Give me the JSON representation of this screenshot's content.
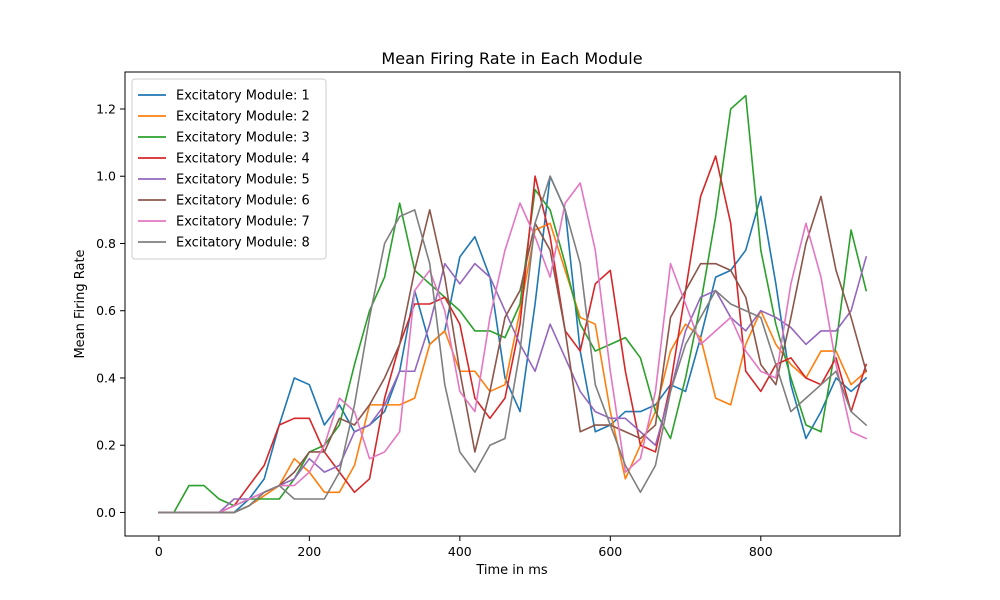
{
  "chart_data": {
    "type": "line",
    "title": "Mean Firing Rate in Each Module",
    "xlabel": "Time in ms",
    "ylabel": "Mean Firing Rate",
    "xlim": [
      -45,
      985
    ],
    "ylim": [
      -0.07,
      1.31
    ],
    "xticks": [
      0,
      200,
      400,
      600,
      800
    ],
    "xtick_labels": [
      "0",
      "200",
      "400",
      "600",
      "800"
    ],
    "yticks": [
      0.0,
      0.2,
      0.4,
      0.6,
      0.8,
      1.0,
      1.2
    ],
    "ytick_labels": [
      "0.0",
      "0.2",
      "0.4",
      "0.6",
      "0.8",
      "1.0",
      "1.2"
    ],
    "grid": false,
    "legend_position": "top-left",
    "x": [
      0,
      20,
      40,
      60,
      80,
      100,
      120,
      140,
      160,
      180,
      200,
      220,
      240,
      260,
      280,
      300,
      320,
      340,
      360,
      380,
      400,
      420,
      440,
      460,
      480,
      500,
      520,
      540,
      560,
      580,
      600,
      620,
      640,
      660,
      680,
      700,
      720,
      740,
      760,
      780,
      800,
      820,
      840,
      860,
      880,
      900,
      920,
      940
    ],
    "series": [
      {
        "name": "Excitatory Module: 1",
        "color": "#1f77b4",
        "values": [
          0,
          0,
          0,
          0,
          0,
          0,
          0.04,
          0.1,
          0.26,
          0.4,
          0.38,
          0.26,
          0.32,
          0.24,
          0.26,
          0.3,
          0.42,
          0.66,
          0.5,
          0.54,
          0.76,
          0.82,
          0.7,
          0.4,
          0.3,
          0.62,
          1.0,
          0.9,
          0.48,
          0.24,
          0.26,
          0.3,
          0.3,
          0.32,
          0.38,
          0.36,
          0.52,
          0.7,
          0.72,
          0.78,
          0.94,
          0.68,
          0.38,
          0.22,
          0.3,
          0.4,
          0.36,
          0.4
        ]
      },
      {
        "name": "Excitatory Module: 2",
        "color": "#ff7f0e",
        "values": [
          0,
          0,
          0,
          0,
          0,
          0,
          0.02,
          0.05,
          0.08,
          0.16,
          0.12,
          0.06,
          0.06,
          0.14,
          0.32,
          0.32,
          0.32,
          0.34,
          0.5,
          0.54,
          0.42,
          0.42,
          0.36,
          0.38,
          0.6,
          0.84,
          0.86,
          0.72,
          0.58,
          0.56,
          0.3,
          0.1,
          0.2,
          0.3,
          0.48,
          0.56,
          0.52,
          0.34,
          0.32,
          0.5,
          0.6,
          0.5,
          0.44,
          0.4,
          0.48,
          0.48,
          0.38,
          0.42
        ]
      },
      {
        "name": "Excitatory Module: 3",
        "color": "#2ca02c",
        "values": [
          0,
          0,
          0.08,
          0.08,
          0.04,
          0.02,
          0.04,
          0.04,
          0.04,
          0.1,
          0.18,
          0.2,
          0.26,
          0.44,
          0.6,
          0.7,
          0.92,
          0.72,
          0.68,
          0.64,
          0.6,
          0.54,
          0.54,
          0.52,
          0.62,
          0.96,
          0.9,
          0.74,
          0.56,
          0.48,
          0.5,
          0.52,
          0.46,
          0.3,
          0.22,
          0.4,
          0.62,
          0.88,
          1.2,
          1.24,
          0.78,
          0.56,
          0.4,
          0.26,
          0.24,
          0.5,
          0.84,
          0.66
        ]
      },
      {
        "name": "Excitatory Module: 4",
        "color": "#d62728",
        "values": [
          0,
          0,
          0,
          0,
          0,
          0.02,
          0.08,
          0.14,
          0.26,
          0.28,
          0.28,
          0.18,
          0.12,
          0.06,
          0.1,
          0.34,
          0.5,
          0.62,
          0.62,
          0.64,
          0.56,
          0.34,
          0.28,
          0.34,
          0.56,
          1.0,
          0.82,
          0.54,
          0.48,
          0.68,
          0.72,
          0.42,
          0.2,
          0.18,
          0.38,
          0.66,
          0.94,
          1.06,
          0.86,
          0.42,
          0.36,
          0.44,
          0.46,
          0.4,
          0.38,
          0.46,
          0.3,
          0.44
        ]
      },
      {
        "name": "Excitatory Module: 5",
        "color": "#9467bd",
        "values": [
          0,
          0,
          0,
          0,
          0,
          0.04,
          0.04,
          0.06,
          0.08,
          0.1,
          0.16,
          0.12,
          0.14,
          0.24,
          0.26,
          0.32,
          0.42,
          0.42,
          0.56,
          0.74,
          0.68,
          0.74,
          0.7,
          0.6,
          0.5,
          0.42,
          0.56,
          0.46,
          0.36,
          0.3,
          0.28,
          0.28,
          0.24,
          0.2,
          0.36,
          0.54,
          0.64,
          0.66,
          0.58,
          0.54,
          0.6,
          0.58,
          0.55,
          0.5,
          0.54,
          0.54,
          0.6,
          0.76
        ]
      },
      {
        "name": "Excitatory Module: 6",
        "color": "#8c564b",
        "values": [
          0,
          0,
          0,
          0,
          0,
          0,
          0.02,
          0.06,
          0.08,
          0.12,
          0.18,
          0.18,
          0.28,
          0.26,
          0.32,
          0.4,
          0.5,
          0.72,
          0.9,
          0.7,
          0.42,
          0.18,
          0.36,
          0.58,
          0.66,
          0.86,
          0.78,
          0.54,
          0.24,
          0.26,
          0.26,
          0.24,
          0.22,
          0.26,
          0.58,
          0.66,
          0.74,
          0.74,
          0.72,
          0.64,
          0.44,
          0.38,
          0.58,
          0.8,
          0.94,
          0.72,
          0.58,
          0.42
        ]
      },
      {
        "name": "Excitatory Module: 7",
        "color": "#e377c2",
        "values": [
          0,
          0,
          0,
          0,
          0,
          0.02,
          0.04,
          0.06,
          0.08,
          0.08,
          0.12,
          0.2,
          0.34,
          0.3,
          0.16,
          0.18,
          0.24,
          0.66,
          0.72,
          0.6,
          0.36,
          0.3,
          0.58,
          0.78,
          0.92,
          0.82,
          0.7,
          0.92,
          0.98,
          0.78,
          0.42,
          0.12,
          0.16,
          0.36,
          0.74,
          0.62,
          0.5,
          0.54,
          0.58,
          0.48,
          0.42,
          0.4,
          0.68,
          0.86,
          0.7,
          0.44,
          0.24,
          0.22
        ]
      },
      {
        "name": "Excitatory Module: 8",
        "color": "#7f7f7f",
        "values": [
          0,
          0,
          0,
          0,
          0,
          0,
          0.02,
          0.06,
          0.08,
          0.04,
          0.04,
          0.04,
          0.12,
          0.32,
          0.58,
          0.8,
          0.88,
          0.9,
          0.74,
          0.38,
          0.18,
          0.12,
          0.2,
          0.22,
          0.48,
          0.86,
          1.0,
          0.9,
          0.74,
          0.38,
          0.26,
          0.14,
          0.06,
          0.14,
          0.36,
          0.5,
          0.58,
          0.66,
          0.62,
          0.6,
          0.58,
          0.44,
          0.3,
          0.34,
          0.38,
          0.42,
          0.3,
          0.26
        ]
      }
    ]
  }
}
